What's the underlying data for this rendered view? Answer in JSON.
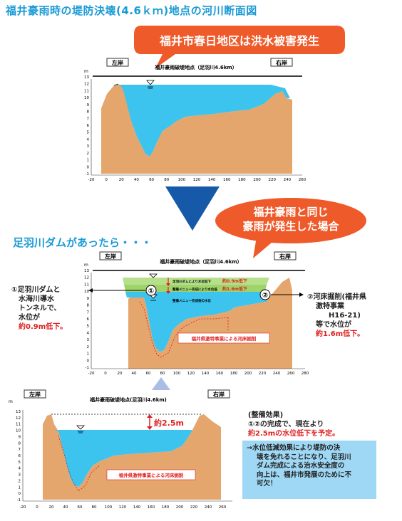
{
  "title": "福井豪雨時の堤防決壊(4.6ｋｍ)地点の河川断面図",
  "bubble_top": "福井市春日地区は洪水被害発生",
  "bubble_mid_line1": "福井豪雨と同じ",
  "bubble_mid_line2": "豪雨が発生した場合",
  "subtitle": "足羽川ダムがあったら・・・",
  "section_label": "福井豪雨破堤地点（足羽川4.6km）",
  "section_label_bottom": "福井豪雨破堤地点(足羽川4.6km)",
  "left_bank": "左岸",
  "right_bank": "右岸",
  "axis_unit": "m",
  "y_ticks": [
    "13",
    "12",
    "11",
    "10",
    "9",
    "8",
    "7",
    "6",
    "5",
    "4",
    "3",
    "2",
    "1",
    "0",
    "-1"
  ],
  "x_ticks_a": [
    "-20",
    "0",
    "20",
    "40",
    "60",
    "80",
    "100",
    "120",
    "140",
    "160",
    "180",
    "200",
    "220",
    "240",
    "260"
  ],
  "x_ticks_b": [
    "-20",
    "0",
    "20",
    "40",
    "60",
    "80",
    "100",
    "120",
    "140",
    "160",
    "180",
    "200",
    "220",
    "240",
    "260",
    "280"
  ],
  "x_ticks_c": [
    "-20",
    "0",
    "20",
    "40",
    "60",
    "80",
    "100",
    "120",
    "140",
    "160",
    "180",
    "200",
    "220",
    "240",
    "260"
  ],
  "legend_dam": "足羽川ダムにより水位低下",
  "legend_dam_value": "約0.9m低下",
  "legend_menu": "整備メニュー完成により水位低",
  "legend_menu_value": "約1.6m低下",
  "legend_menu_final": "整備メニュー完成後の水位",
  "circle1": "①",
  "circle2": "②",
  "note_left_lines": [
    "①足羽川ダムと",
    "水海川導水",
    "トンネルで、",
    "水位が"
  ],
  "note_left_red": "約0.9m低下。",
  "note_right_lines": [
    "②河床掘削(福井県",
    "激特事業",
    "H16-21)",
    "等で水位が"
  ],
  "note_right_red": "約1.6m低下。",
  "excavation_label": "福井県激特事業による河床掘削",
  "drop_label": "約2.5m",
  "effect_title": "(整備効果)",
  "effect_line": "①②の完成で、現在より",
  "effect_red": "約2.5mの水位低下を予定。",
  "box_lines": [
    "→水位低減効果により堤防の決",
    "壊を免れることになり、足羽川",
    "ダム完成による治水安全度の",
    "向上は、福井市発展のために不",
    "可欠！"
  ],
  "colors": {
    "ground": "#e4a66c",
    "water": "#3cc3ee",
    "green": "#9fd36b",
    "accent_blue": "#1a9ad6",
    "arrow_blue": "#1559a8",
    "bubble_red": "#ef5a2a",
    "red": "#e02020"
  }
}
